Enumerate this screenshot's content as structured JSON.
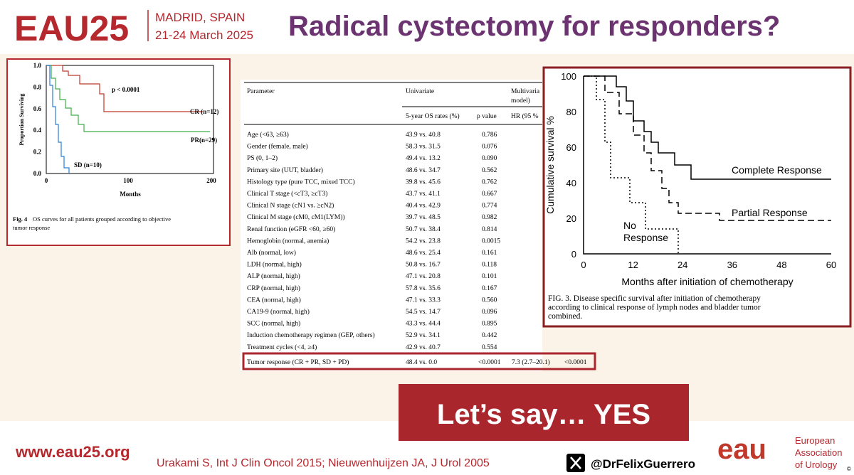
{
  "header": {
    "logo": "EAU25",
    "location": "MADRID, SPAIN",
    "dates": "21-24 March 2025",
    "title": "Radical cystectomy for responders?"
  },
  "figure_left": {
    "y_label": "Proportion Surviving",
    "x_label": "Months",
    "yticks": [
      "1.0",
      "0.8",
      "0.6",
      "0.4",
      "0.2",
      "0.0"
    ],
    "xticks": [
      "0",
      "100",
      "200"
    ],
    "p_value": "p < 0.0001",
    "labels": [
      "CR (n=12)",
      "PR(n=29)",
      "SD (n=10)"
    ],
    "caption_label": "Fig. 4",
    "caption_lines": [
      "OS curves for all patients grouped according to objective",
      "tumor response"
    ]
  },
  "table": {
    "header": [
      "Parameter",
      "Univariate",
      "Multivaria",
      "model)"
    ],
    "subheader": [
      "5-year OS rates (%)",
      "p value",
      "HR (95 %"
    ],
    "rows": [
      [
        "Age (<63, ≥63)",
        "43.9 vs. 40.8",
        "0.786"
      ],
      [
        "Gender (female, male)",
        "58.3 vs. 31.5",
        "0.076"
      ],
      [
        "PS (0, 1–2)",
        "49.4 vs. 13.2",
        "0.090"
      ],
      [
        "Primary site (UUT, bladder)",
        "48.6 vs. 34.7",
        "0.562"
      ],
      [
        "Histology type (pure TCC, mixed TCC)",
        "39.8 vs. 45.6",
        "0.762"
      ],
      [
        "Clinical T stage (<cT3, ≥cT3)",
        "43.7 vs. 41.1",
        "0.667"
      ],
      [
        "Clinical N stage (cN1 vs. ≥cN2)",
        "40.4 vs. 42.9",
        "0.774"
      ],
      [
        "Clinical M stage (cM0, cM1(LYM))",
        "39.7 vs. 48.5",
        "0.982"
      ],
      [
        "Renal function (eGFR <60, ≥60)",
        "50.7 vs. 38.4",
        "0.814"
      ],
      [
        "Hemoglobin (normal, anemia)",
        "54.2 vs. 23.8",
        "0.0015"
      ],
      [
        "Alb (normal, low)",
        "48.6 vs. 25.4",
        "0.161"
      ],
      [
        "LDH (normal, high)",
        "50.8 vs. 16.7",
        "0.118"
      ],
      [
        "ALP (normal, high)",
        "47.1 vs. 20.8",
        "0.101"
      ],
      [
        "CRP (normal, high)",
        "57.8 vs. 35.6",
        "0.167"
      ],
      [
        "CEA (normal, high)",
        "47.1 vs. 33.3",
        "0.560"
      ],
      [
        "CA19-9 (normal, high)",
        "54.5 vs. 14.7",
        "0.096"
      ],
      [
        "SCC (normal, high)",
        "43.3 vs. 44.4",
        "0.895"
      ],
      [
        "Induction chemotherapy regimen (GEP, others)",
        "52.9 vs. 34.1",
        "0.442"
      ],
      [
        "Treatment cycles (<4, ≥4)",
        "42.9 vs. 40.7",
        "0.554"
      ]
    ],
    "highlight_row": [
      "Tumor response (CR + PR, SD + PD)",
      "48.4 vs. 0.0",
      "<0.0001",
      "7.3 (2.7–20.1)",
      "<0.0001"
    ]
  },
  "figure_right": {
    "y_label": "Cumulative survival %",
    "x_label": "Months after initiation of chemotherapy",
    "yticks": [
      "100",
      "80",
      "60",
      "40",
      "20",
      "0"
    ],
    "xticks": [
      "0",
      "12",
      "24",
      "36",
      "48",
      "60"
    ],
    "labels": [
      "Complete Response",
      "Partial Response",
      "No",
      "Response"
    ],
    "caption_lines": [
      "FIG. 3. Disease specific survival after initiation of chemotherapy",
      "according to clinical response of lymph nodes and bladder tumor",
      "combined."
    ]
  },
  "callout": "Let’s say… YES",
  "footer": {
    "url": "www.eau25.org",
    "citation": "Urakami S, Int J Clin Oncol 2015; Nieuwenhuijzen JA, J Urol 2005",
    "handle": "@DrFelixGuerrero",
    "org_logo": "eau",
    "org_lines": [
      "European",
      "Association",
      "of Urology"
    ],
    "copyright": "©"
  }
}
